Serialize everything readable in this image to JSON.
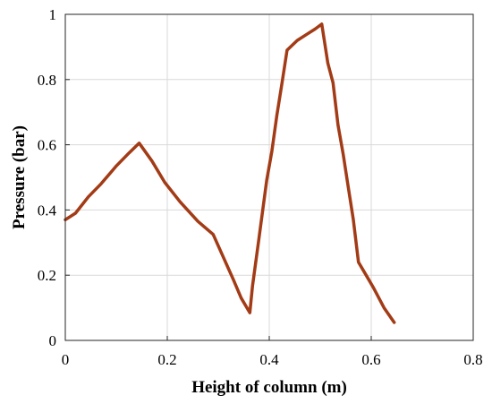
{
  "chart_data": {
    "type": "line",
    "title": "",
    "xlabel": "Height of column (m)",
    "ylabel": "Pressure (bar)",
    "xlim": [
      0,
      0.8
    ],
    "ylim": [
      0,
      1
    ],
    "xticks": [
      0,
      0.2,
      0.4,
      0.6,
      0.8
    ],
    "xtick_labels": [
      "0",
      "0.2",
      "0.4",
      "0.6",
      "0.8"
    ],
    "yticks": [
      0,
      0.2,
      0.4,
      0.6,
      0.8,
      1
    ],
    "ytick_labels": [
      "0",
      "0.2",
      "0.4",
      "0.6",
      "0.8",
      "1"
    ],
    "grid": true,
    "legend": "none",
    "series": [
      {
        "color": "#a23b16",
        "x": [
          0.0,
          0.02,
          0.045,
          0.07,
          0.1,
          0.125,
          0.145,
          0.17,
          0.195,
          0.225,
          0.26,
          0.29,
          0.31,
          0.33,
          0.345,
          0.362,
          0.367,
          0.38,
          0.395,
          0.405,
          0.415,
          0.425,
          0.435,
          0.455,
          0.475,
          0.49,
          0.503,
          0.515,
          0.525,
          0.535,
          0.545,
          0.555,
          0.565,
          0.575,
          0.59,
          0.605,
          0.625,
          0.645
        ],
        "y": [
          0.37,
          0.39,
          0.44,
          0.48,
          0.535,
          0.575,
          0.605,
          0.55,
          0.485,
          0.425,
          0.365,
          0.325,
          0.255,
          0.185,
          0.13,
          0.085,
          0.165,
          0.315,
          0.49,
          0.58,
          0.69,
          0.79,
          0.89,
          0.92,
          0.94,
          0.955,
          0.97,
          0.85,
          0.79,
          0.66,
          0.57,
          0.47,
          0.37,
          0.24,
          0.2,
          0.16,
          0.1,
          0.055
        ]
      }
    ]
  }
}
